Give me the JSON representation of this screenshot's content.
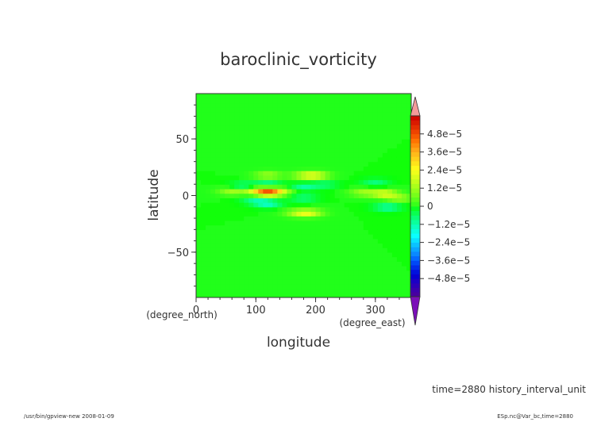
{
  "chart_data": {
    "type": "heatmap",
    "title": "baroclinic_vorticity",
    "xlabel": "longitude",
    "ylabel": "latitude",
    "x_unit": "(degree_east)",
    "y_unit": "(degree_north)",
    "xlim": [
      0,
      360
    ],
    "ylim": [
      -90,
      90
    ],
    "x_ticks": [
      {
        "value": 0,
        "label": "0"
      },
      {
        "value": 100,
        "label": "100"
      },
      {
        "value": 200,
        "label": "200"
      },
      {
        "value": 300,
        "label": "300"
      }
    ],
    "y_ticks": [
      {
        "value": 50,
        "label": "50"
      },
      {
        "value": 0,
        "label": "0"
      },
      {
        "value": -50,
        "label": "−50"
      }
    ],
    "colorbar": {
      "min": -6e-05,
      "max": 6e-05,
      "step": 3e-06,
      "ticks": [
        {
          "value": 4.8e-05,
          "label": "4.8e−5"
        },
        {
          "value": 3.6e-05,
          "label": "3.6e−5"
        },
        {
          "value": 2.4e-05,
          "label": "2.4e−5"
        },
        {
          "value": 1.2e-05,
          "label": "1.2e−5"
        },
        {
          "value": 0,
          "label": "0"
        },
        {
          "value": -1.2e-05,
          "label": "−1.2e−5"
        },
        {
          "value": -2.4e-05,
          "label": "−2.4e−5"
        },
        {
          "value": -3.6e-05,
          "label": "−3.6e−5"
        },
        {
          "value": -4.8e-05,
          "label": "−4.8e−5"
        }
      ],
      "over_color": "#f49b9b",
      "under_color": "#7b0fb8"
    },
    "field_features": [
      {
        "lon": 120,
        "lat": 3,
        "value": 4e-05
      },
      {
        "lon": 100,
        "lat": 5,
        "value": 1.5e-05
      },
      {
        "lon": 140,
        "lat": 4,
        "value": 1.3e-05
      },
      {
        "lon": 60,
        "lat": 4,
        "value": 1.2e-05
      },
      {
        "lon": 120,
        "lat": 18,
        "value": 1.4e-05
      },
      {
        "lon": 200,
        "lat": 18,
        "value": 2e-05
      },
      {
        "lon": 180,
        "lat": 18,
        "value": 1.2e-05
      },
      {
        "lon": 190,
        "lat": -15,
        "value": 1.8e-05
      },
      {
        "lon": 170,
        "lat": -15,
        "value": 1.2e-05
      },
      {
        "lon": 315,
        "lat": 2,
        "value": 2.2e-05
      },
      {
        "lon": 280,
        "lat": 3,
        "value": 1.2e-05
      },
      {
        "lon": 340,
        "lat": -2,
        "value": 1.2e-05
      },
      {
        "lon": 120,
        "lat": -7,
        "value": -1.4e-05
      },
      {
        "lon": 100,
        "lat": -4,
        "value": -1e-05
      },
      {
        "lon": 80,
        "lat": 9,
        "value": -1e-05
      },
      {
        "lon": 180,
        "lat": 8,
        "value": -1.1e-05
      },
      {
        "lon": 120,
        "lat": 12,
        "value": -8e-06
      },
      {
        "lon": 180,
        "lat": -2,
        "value": -9e-06
      },
      {
        "lon": 215,
        "lat": 10,
        "value": -8e-06
      },
      {
        "lon": 300,
        "lat": 12,
        "value": -8e-06
      },
      {
        "lon": 320,
        "lat": -10,
        "value": -1.3e-05
      }
    ],
    "grid": false
  },
  "footer": {
    "time_label": "time=2880  history_interval_unit",
    "left_note": "/usr/bin/gpview-new  2008-01-09",
    "right_note": "ESp.nc@Var_bc,time=2880"
  }
}
